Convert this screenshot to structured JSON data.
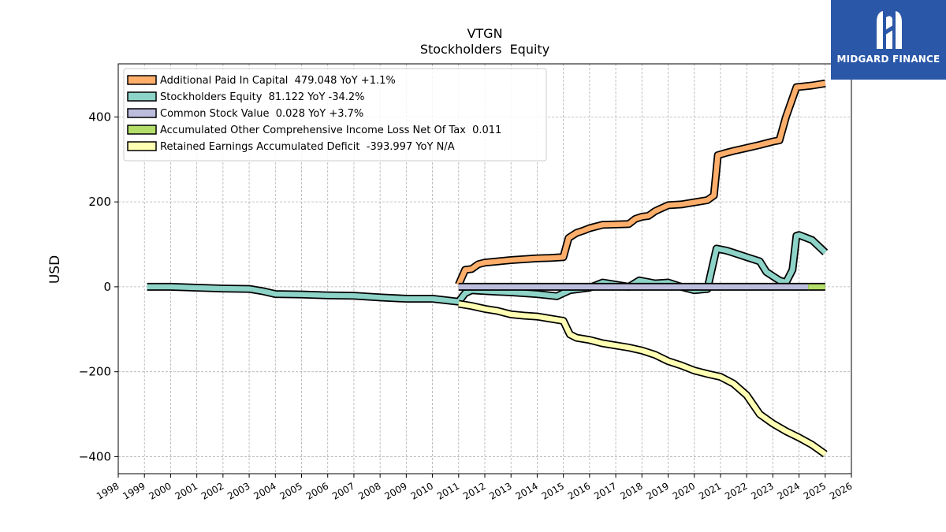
{
  "brand": {
    "name": "MIDGARD FINANCE",
    "color": "#2b57a8",
    "icon": "midgard-logo-icon"
  },
  "chart_data": {
    "type": "line",
    "title": "VTGN",
    "subtitle": "Stockholders  Equity",
    "ylabel": "USD",
    "xlabel": "",
    "xlim": [
      1998,
      2026
    ],
    "ylim": [
      -440,
      525
    ],
    "x_ticks": [
      "1998",
      "1999",
      "2000",
      "2001",
      "2002",
      "2003",
      "2004",
      "2005",
      "2006",
      "2007",
      "2008",
      "2009",
      "2010",
      "2011",
      "2012",
      "2013",
      "2014",
      "2015",
      "2016",
      "2017",
      "2018",
      "2019",
      "2020",
      "2021",
      "2022",
      "2023",
      "2024",
      "2025",
      "2026"
    ],
    "y_ticks": [
      -400,
      -200,
      0,
      200,
      400
    ],
    "y_tick_labels": [
      "−400",
      "−200",
      "0",
      "200",
      "400"
    ],
    "grid": true,
    "legend_position": "top-left",
    "series": [
      {
        "name": "Additional Paid In Capital  479.048 YoY +1.1%",
        "color": "#fdae6b",
        "points": [
          [
            2011.0,
            5
          ],
          [
            2011.25,
            40
          ],
          [
            2011.5,
            42
          ],
          [
            2011.75,
            53
          ],
          [
            2012.0,
            57
          ],
          [
            2012.5,
            60
          ],
          [
            2013.0,
            63
          ],
          [
            2013.5,
            65
          ],
          [
            2014.0,
            67
          ],
          [
            2014.5,
            68
          ],
          [
            2015.0,
            70
          ],
          [
            2015.2,
            115
          ],
          [
            2015.5,
            127
          ],
          [
            2015.75,
            132
          ],
          [
            2016.0,
            138
          ],
          [
            2016.5,
            146
          ],
          [
            2017.0,
            147
          ],
          [
            2017.5,
            148
          ],
          [
            2017.75,
            160
          ],
          [
            2018.0,
            165
          ],
          [
            2018.25,
            167
          ],
          [
            2018.5,
            178
          ],
          [
            2018.75,
            185
          ],
          [
            2019.0,
            192
          ],
          [
            2019.5,
            194
          ],
          [
            2020.0,
            199
          ],
          [
            2020.5,
            204
          ],
          [
            2020.75,
            215
          ],
          [
            2020.9,
            310
          ],
          [
            2021.25,
            316
          ],
          [
            2021.5,
            320
          ],
          [
            2022.0,
            327
          ],
          [
            2022.5,
            334
          ],
          [
            2023.0,
            342
          ],
          [
            2023.25,
            345
          ],
          [
            2023.5,
            400
          ],
          [
            2023.9,
            470
          ],
          [
            2024.5,
            474
          ],
          [
            2025.0,
            479
          ]
        ]
      },
      {
        "name": "Stockholders Equity  81.122 YoY -34.2%",
        "color": "#8dd3c7",
        "points": [
          [
            1999.1,
            0
          ],
          [
            2000.0,
            0
          ],
          [
            2001.0,
            -2
          ],
          [
            2002.0,
            -4
          ],
          [
            2003.0,
            -5
          ],
          [
            2003.5,
            -10
          ],
          [
            2004.0,
            -17
          ],
          [
            2005.0,
            -18
          ],
          [
            2006.0,
            -20
          ],
          [
            2007.0,
            -21
          ],
          [
            2008.0,
            -25
          ],
          [
            2009.0,
            -28
          ],
          [
            2010.0,
            -28
          ],
          [
            2011.0,
            -35
          ],
          [
            2011.25,
            -15
          ],
          [
            2011.5,
            -8
          ],
          [
            2012.0,
            -10
          ],
          [
            2013.0,
            -13
          ],
          [
            2014.0,
            -17
          ],
          [
            2014.75,
            -22
          ],
          [
            2015.0,
            -15
          ],
          [
            2015.25,
            -8
          ],
          [
            2016.0,
            -2
          ],
          [
            2016.5,
            10
          ],
          [
            2017.0,
            5
          ],
          [
            2017.5,
            0
          ],
          [
            2017.9,
            15
          ],
          [
            2018.5,
            8
          ],
          [
            2019.0,
            10
          ],
          [
            2019.5,
            0
          ],
          [
            2020.0,
            -8
          ],
          [
            2020.5,
            -5
          ],
          [
            2020.85,
            90
          ],
          [
            2021.25,
            85
          ],
          [
            2021.5,
            80
          ],
          [
            2022.0,
            70
          ],
          [
            2022.5,
            60
          ],
          [
            2022.75,
            35
          ],
          [
            2023.0,
            25
          ],
          [
            2023.25,
            15
          ],
          [
            2023.5,
            10
          ],
          [
            2023.75,
            40
          ],
          [
            2023.9,
            120
          ],
          [
            2024.0,
            122
          ],
          [
            2024.5,
            110
          ],
          [
            2025.0,
            81
          ]
        ]
      },
      {
        "name": "Common Stock Value  0.028 YoY +3.7%",
        "color": "#bcbddc",
        "points": [
          [
            2011.0,
            0
          ],
          [
            2024.35,
            0
          ]
        ]
      },
      {
        "name": "Accumulated Other Comprehensive Income Loss Net Of Tax  0.011",
        "color": "#b3de69",
        "points": [
          [
            2024.35,
            0
          ],
          [
            2025.0,
            0
          ]
        ]
      },
      {
        "name": "Retained Earnings Accumulated Deficit  -393.997 YoY N/A",
        "color": "#ffffb3",
        "points": [
          [
            2011.0,
            -40
          ],
          [
            2011.5,
            -45
          ],
          [
            2012.0,
            -52
          ],
          [
            2012.5,
            -57
          ],
          [
            2013.0,
            -65
          ],
          [
            2013.5,
            -68
          ],
          [
            2014.0,
            -70
          ],
          [
            2014.5,
            -75
          ],
          [
            2015.0,
            -80
          ],
          [
            2015.25,
            -112
          ],
          [
            2015.5,
            -120
          ],
          [
            2016.0,
            -125
          ],
          [
            2016.5,
            -133
          ],
          [
            2017.0,
            -138
          ],
          [
            2017.5,
            -143
          ],
          [
            2018.0,
            -150
          ],
          [
            2018.5,
            -160
          ],
          [
            2019.0,
            -175
          ],
          [
            2019.5,
            -185
          ],
          [
            2020.0,
            -197
          ],
          [
            2020.5,
            -205
          ],
          [
            2021.0,
            -212
          ],
          [
            2021.5,
            -228
          ],
          [
            2022.0,
            -255
          ],
          [
            2022.5,
            -300
          ],
          [
            2023.0,
            -322
          ],
          [
            2023.5,
            -340
          ],
          [
            2024.0,
            -355
          ],
          [
            2024.5,
            -372
          ],
          [
            2025.0,
            -394
          ]
        ]
      }
    ]
  }
}
